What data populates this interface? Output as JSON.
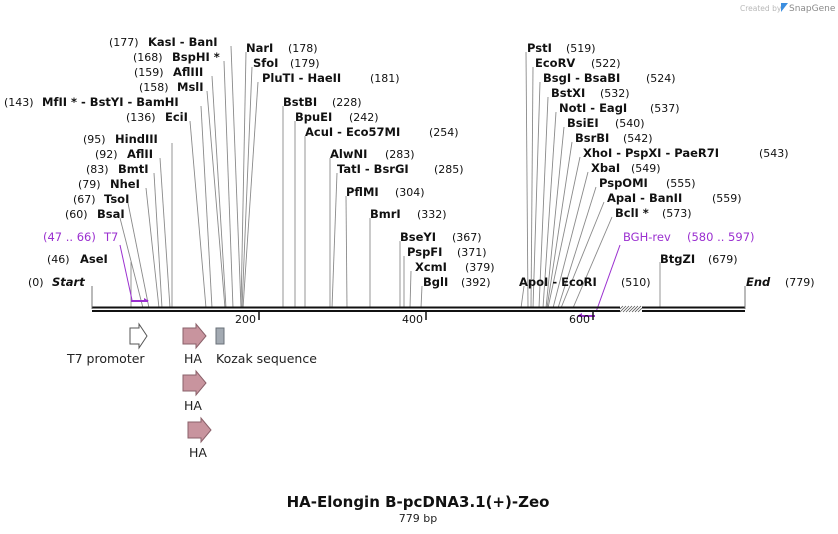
{
  "watermark": {
    "created_by": "Created by",
    "brand": "SnapGene",
    "logo_color": "#3b8ee0"
  },
  "title": {
    "name": "HA-Elongin B-pcDNA3.1(+)-Zeo",
    "length": "779 bp"
  },
  "map": {
    "total_bp": 779,
    "start_label": "Start",
    "start_pos": "(0)",
    "end_label": "End",
    "end_pos": "(779)",
    "ruler_ticks": [
      "200",
      "400",
      "600"
    ],
    "backbone_color": "#111111"
  },
  "sites": [
    {
      "pos": "(46)",
      "name": "AseI"
    },
    {
      "pos": "(60)",
      "name": "BsaI"
    },
    {
      "pos": "(67)",
      "name": "TsoI"
    },
    {
      "pos": "(79)",
      "name": "NheI"
    },
    {
      "pos": "(83)",
      "name": "BmtI"
    },
    {
      "pos": "(92)",
      "name": "AflII"
    },
    {
      "pos": "(95)",
      "name": "HindIII"
    },
    {
      "pos": "(136)",
      "name": "EciI"
    },
    {
      "pos": "(143)",
      "name": "MfII * - BstYI - BamHI"
    },
    {
      "pos": "(158)",
      "name": "MslI"
    },
    {
      "pos": "(159)",
      "name": "AflIII"
    },
    {
      "pos": "(168)",
      "name": "BspHI *"
    },
    {
      "pos": "(177)",
      "name": "KasI - BanI"
    },
    {
      "pos": "(178)",
      "name": "NarI"
    },
    {
      "pos": "(179)",
      "name": "SfoI"
    },
    {
      "pos": "(181)",
      "name": "PluTI - HaeII"
    },
    {
      "pos": "(228)",
      "name": "BstBI"
    },
    {
      "pos": "(242)",
      "name": "BpuEI"
    },
    {
      "pos": "(254)",
      "name": "AcuI - Eco57MI"
    },
    {
      "pos": "(283)",
      "name": "AlwNI"
    },
    {
      "pos": "(285)",
      "name": "TatI - BsrGI"
    },
    {
      "pos": "(304)",
      "name": "PflMI"
    },
    {
      "pos": "(332)",
      "name": "BmrI"
    },
    {
      "pos": "(367)",
      "name": "BseYI"
    },
    {
      "pos": "(371)",
      "name": "PspFI"
    },
    {
      "pos": "(379)",
      "name": "XcmI"
    },
    {
      "pos": "(392)",
      "name": "BglI"
    },
    {
      "pos": "(510)",
      "name": "ApoI - EcoRI"
    },
    {
      "pos": "(519)",
      "name": "PstI"
    },
    {
      "pos": "(522)",
      "name": "EcoRV"
    },
    {
      "pos": "(524)",
      "name": "BsgI - BsaBI"
    },
    {
      "pos": "(532)",
      "name": "BstXI"
    },
    {
      "pos": "(537)",
      "name": "NotI - EagI"
    },
    {
      "pos": "(540)",
      "name": "BsiEI"
    },
    {
      "pos": "(542)",
      "name": "BsrBI"
    },
    {
      "pos": "(543)",
      "name": "XhoI - PspXI - PaeR7I"
    },
    {
      "pos": "(549)",
      "name": "XbaI"
    },
    {
      "pos": "(555)",
      "name": "PspOMI"
    },
    {
      "pos": "(559)",
      "name": "ApaI - BanII"
    },
    {
      "pos": "(573)",
      "name": "BclI *"
    },
    {
      "pos": "(679)",
      "name": "BtgZI"
    }
  ],
  "primers": [
    {
      "range": "(47 .. 66)",
      "name": "T7",
      "color": "#9b30d0"
    },
    {
      "range": "(580 .. 597)",
      "name": "BGH-rev",
      "color": "#9b30d0"
    }
  ],
  "features": [
    {
      "name": "T7 promoter",
      "color": "#ffffff"
    },
    {
      "name": "HA",
      "color": "#c8949e"
    },
    {
      "name": "Kozak sequence",
      "color": "#a3aab2"
    },
    {
      "name": "HA",
      "color": "#c8949e"
    },
    {
      "name": "HA",
      "color": "#c8949e"
    }
  ]
}
